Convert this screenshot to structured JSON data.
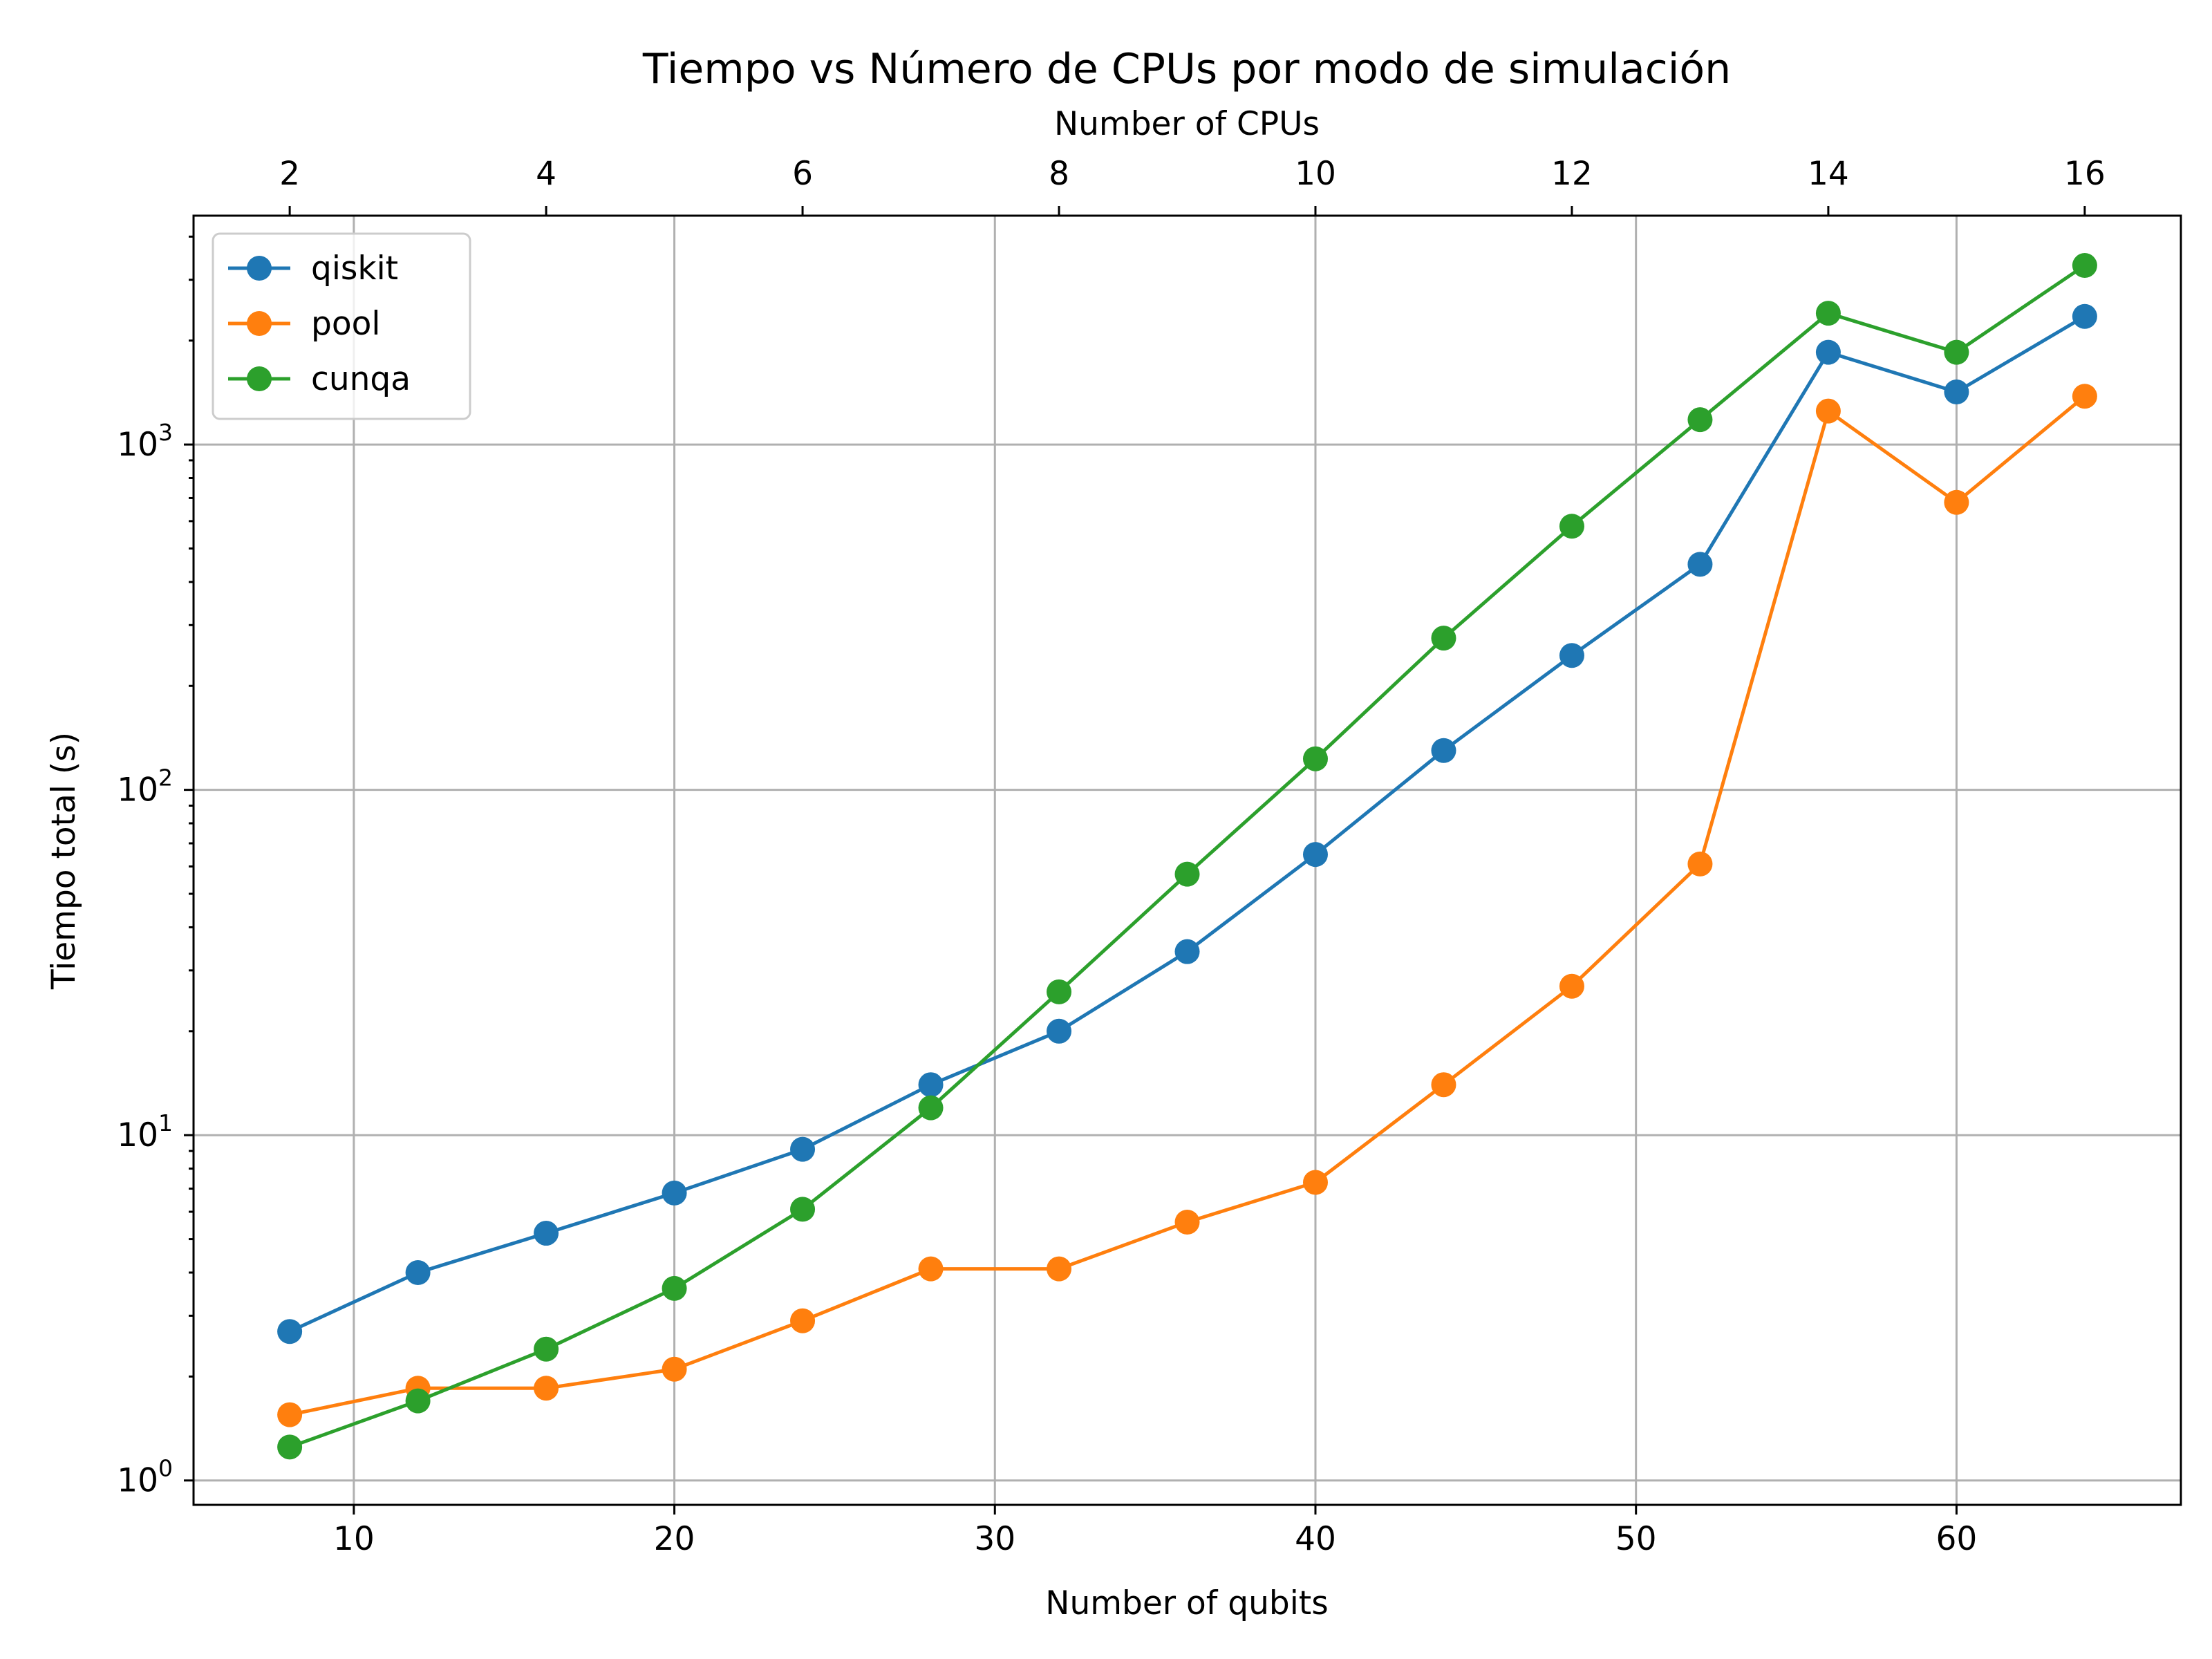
{
  "chart_data": {
    "type": "line",
    "title": "Tiempo vs Número de CPUs por modo de simulación",
    "xlabel": "Number of qubits",
    "x2label": "Number of CPUs",
    "ylabel": "Tiempo total (s)",
    "yscale": "log",
    "xlim": [
      5,
      67
    ],
    "ylim": [
      0.85,
      4600
    ],
    "grid": true,
    "legend": "top-left",
    "x": [
      8,
      12,
      16,
      20,
      24,
      28,
      32,
      36,
      40,
      44,
      48,
      52,
      56,
      60,
      64
    ],
    "x_ticks": [
      "10",
      "20",
      "30",
      "40",
      "50",
      "60"
    ],
    "x_tick_values": [
      10,
      20,
      30,
      40,
      50,
      60
    ],
    "x2_ticks": [
      "2",
      "4",
      "6",
      "8",
      "10",
      "12",
      "14",
      "16"
    ],
    "x2_tick_qubits": [
      8,
      16,
      24,
      32,
      40,
      48,
      56,
      64
    ],
    "y_tick_values": [
      1,
      10,
      100,
      1000
    ],
    "y_ticks": [
      {
        "base": "10",
        "exp": "0"
      },
      {
        "base": "10",
        "exp": "1"
      },
      {
        "base": "10",
        "exp": "2"
      },
      {
        "base": "10",
        "exp": "3"
      }
    ],
    "series": [
      {
        "name": "qiskit",
        "color": "#1f77b4",
        "values": [
          2.7,
          4.0,
          5.2,
          6.8,
          9.1,
          14,
          20,
          34,
          65,
          130,
          245,
          450,
          1850,
          1420,
          2350
        ]
      },
      {
        "name": "pool",
        "color": "#ff7f0e",
        "values": [
          1.55,
          1.85,
          1.85,
          2.1,
          2.9,
          4.1,
          4.1,
          5.6,
          7.3,
          14,
          27,
          61,
          1250,
          680,
          1380
        ]
      },
      {
        "name": "cunqa",
        "color": "#2ca02c",
        "values": [
          1.25,
          1.7,
          2.4,
          3.6,
          6.1,
          12,
          26,
          57,
          123,
          275,
          580,
          1180,
          2400,
          1850,
          3300
        ]
      }
    ]
  }
}
